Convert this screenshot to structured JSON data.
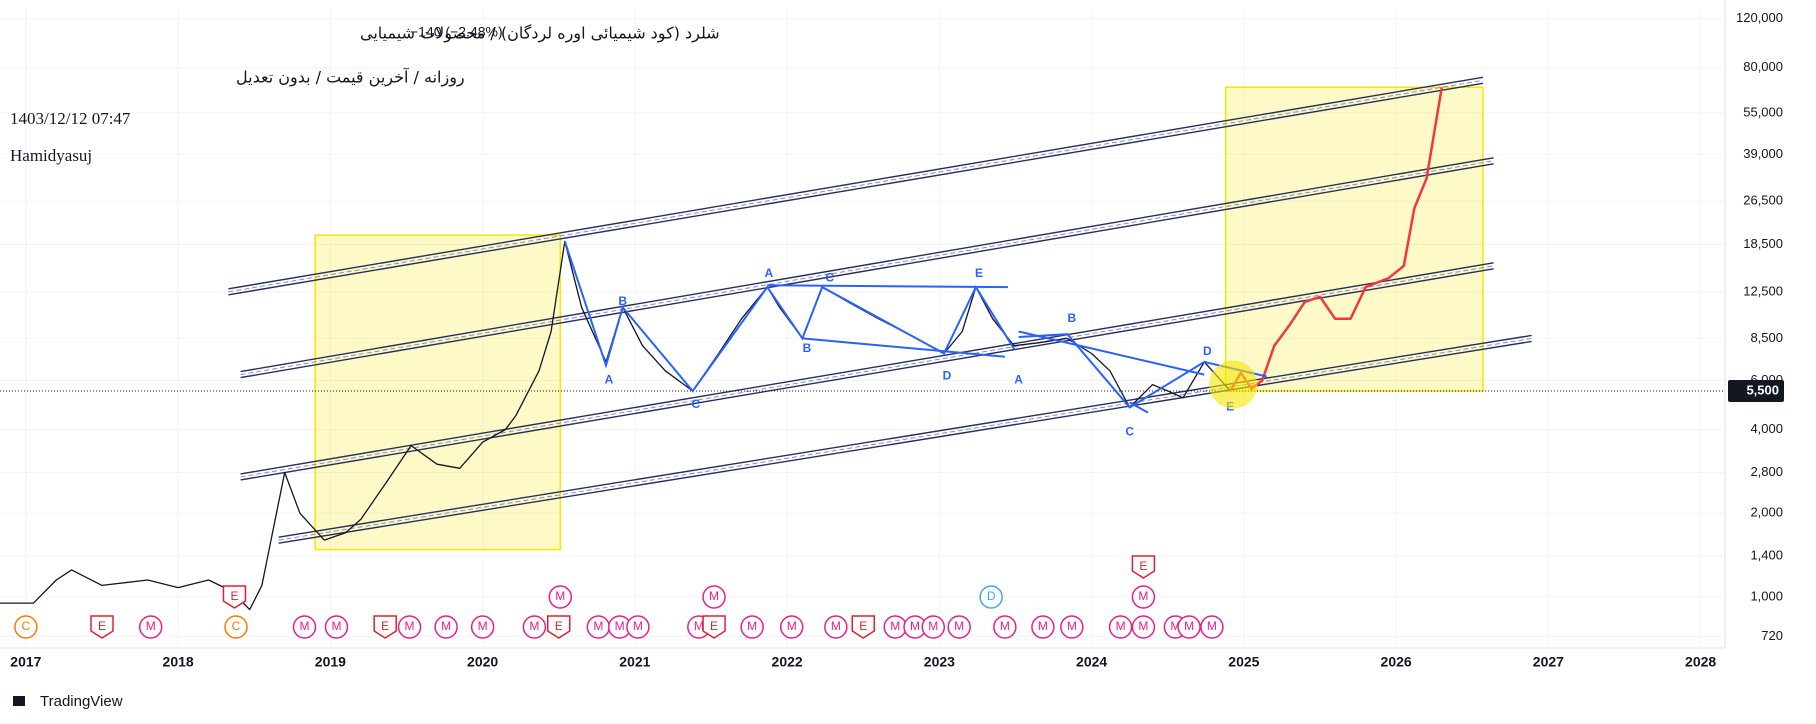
{
  "chart_data": {
    "type": "line",
    "title": "شلرد (کود شیمیائی اوره لردگان) / محصولات شیمیایی",
    "subtitle": "روزانه / آخرین قیمت / بدون تعدیل",
    "change": "−140 (−2.48%)",
    "timestamp": "1403/12/12 07:47",
    "author": "Hamidyasuj",
    "brand": "TradingView",
    "log_scale": true,
    "grid": true,
    "xlim": [
      2016.83,
      2028.16
    ],
    "xticks": [
      2017,
      2018,
      2019,
      2020,
      2021,
      2022,
      2023,
      2024,
      2025,
      2026,
      2027,
      2028
    ],
    "ylim": [
      655,
      130000
    ],
    "yticks": [
      {
        "value": 120000,
        "label": "120,000"
      },
      {
        "value": 80000,
        "label": "80,000"
      },
      {
        "value": 55000,
        "label": "55,000"
      },
      {
        "value": 39000,
        "label": "39,000"
      },
      {
        "value": 26500,
        "label": "26,500"
      },
      {
        "value": 18500,
        "label": "18,500"
      },
      {
        "value": 12500,
        "label": "12,500"
      },
      {
        "value": 8500,
        "label": "8,500"
      },
      {
        "value": 6000,
        "label": "6,000"
      },
      {
        "value": 4000,
        "label": "4,000"
      },
      {
        "value": 2800,
        "label": "2,800"
      },
      {
        "value": 2000,
        "label": "2,000"
      },
      {
        "value": 1400,
        "label": "1,400"
      },
      {
        "value": 1000,
        "label": "1,000"
      },
      720
    ],
    "last_price": {
      "value": 5500,
      "label": "5,500"
    },
    "series": [
      {
        "name": "Price",
        "color": "#131722",
        "x": [
          2016.83,
          2017.05,
          2017.2,
          2017.3,
          2017.5,
          2017.8,
          2018.0,
          2018.2,
          2018.35,
          2018.47,
          2018.55,
          2018.62,
          2018.7,
          2018.8,
          2018.96,
          2019.1,
          2019.2,
          2019.35,
          2019.53,
          2019.7,
          2019.85,
          2020.0,
          2020.15,
          2020.22,
          2020.37,
          2020.45,
          2020.54,
          2020.65,
          2020.81,
          2020.92,
          2021.05,
          2021.2,
          2021.38,
          2021.55,
          2021.7,
          2021.87,
          2021.95,
          2022.1,
          2022.23,
          2022.4,
          2022.6,
          2022.8,
          2023.03,
          2023.15,
          2023.24,
          2023.35,
          2023.49,
          2023.65,
          2023.84,
          2024.0,
          2024.12,
          2024.25,
          2024.4,
          2024.5,
          2024.6,
          2024.74,
          2024.85,
          2024.91
        ],
        "values": [
          950,
          950,
          1150,
          1250,
          1100,
          1150,
          1080,
          1150,
          1050,
          900,
          1100,
          1700,
          2800,
          2000,
          1600,
          1700,
          1900,
          2500,
          3500,
          3000,
          2900,
          3600,
          4000,
          4500,
          6500,
          9000,
          19000,
          11000,
          7000,
          11000,
          8000,
          6500,
          5500,
          7500,
          10000,
          13000,
          11000,
          8500,
          13000,
          11500,
          10000,
          8800,
          7500,
          9000,
          13000,
          10000,
          8000,
          8200,
          8500,
          7500,
          6500,
          4800,
          5800,
          5500,
          5200,
          7000,
          6000,
          5500
        ]
      },
      {
        "name": "Projection",
        "color": "#f23645",
        "x": [
          2024.91,
          2024.98,
          2025.05,
          2025.12,
          2025.2,
          2025.3,
          2025.4,
          2025.5,
          2025.6,
          2025.7,
          2025.8,
          2025.95,
          2026.05,
          2026.12,
          2026.2,
          2026.3
        ],
        "values": [
          5500,
          6400,
          5600,
          6000,
          8000,
          9500,
          11500,
          12000,
          10000,
          10000,
          13000,
          14000,
          15500,
          25000,
          32000,
          68000
        ]
      }
    ],
    "channel_color": "#2a2e5a",
    "channels": [
      {
        "x": [
          2018.33,
          2026.57
        ],
        "y": [
          12500,
          72000
        ]
      },
      {
        "x": [
          2018.41,
          2026.64
        ],
        "y": [
          6300,
          37000
        ]
      },
      {
        "x": [
          2018.41,
          2026.64
        ],
        "y": [
          2700,
          15500
        ]
      },
      {
        "x": [
          2018.66,
          2026.89
        ],
        "y": [
          1600,
          8500
        ]
      }
    ],
    "box_color": "#f7e600",
    "boxes": [
      {
        "x": [
          2018.9,
          2020.51
        ],
        "y": [
          1480,
          20000
        ]
      },
      {
        "x": [
          2024.88,
          2026.57
        ],
        "y": [
          5500,
          68000
        ]
      }
    ],
    "highlight": {
      "x": 2024.93,
      "y": 5800
    },
    "wave_color": "#2962ff",
    "wave_lines": [
      {
        "x": [
          2020.54,
          2020.81,
          2020.92,
          2021.38,
          2021.87,
          2022.1,
          2022.23,
          2023.03,
          2023.24,
          2023.49
        ],
        "y": [
          19000,
          6800,
          11000,
          5500,
          13000,
          8500,
          13000,
          7500,
          13000,
          7800
        ]
      },
      {
        "x": [
          2021.87,
          2023.45
        ],
        "y": [
          13200,
          13000
        ]
      },
      {
        "x": [
          2022.1,
          2023.43
        ],
        "y": [
          8500,
          7300
        ]
      },
      {
        "x": [
          2023.52,
          2023.84,
          2024.25,
          2024.74,
          2025.15
        ],
        "y": [
          8600,
          8800,
          4800,
          7000,
          6200
        ]
      },
      {
        "x": [
          2023.52,
          2024.74
        ],
        "y": [
          9000,
          6300
        ]
      },
      {
        "x": [
          2024.25,
          2024.37
        ],
        "y": [
          5000,
          4600
        ]
      }
    ],
    "wave_labels": [
      {
        "x": 2020.92,
        "y": 11500,
        "label": "B"
      },
      {
        "x": 2020.83,
        "y": 6000,
        "label": "A"
      },
      {
        "x": 2021.4,
        "y": 4900,
        "label": "C"
      },
      {
        "x": 2021.88,
        "y": 14500,
        "label": "A"
      },
      {
        "x": 2022.28,
        "y": 14000,
        "label": "C"
      },
      {
        "x": 2022.13,
        "y": 7800,
        "label": "B"
      },
      {
        "x": 2023.05,
        "y": 6200,
        "label": "D"
      },
      {
        "x": 2023.26,
        "y": 14500,
        "label": "E"
      },
      {
        "x": 2023.52,
        "y": 6000,
        "label": "A"
      },
      {
        "x": 2023.87,
        "y": 10000,
        "label": "B"
      },
      {
        "x": 2024.25,
        "y": 3900,
        "label": "C"
      },
      {
        "x": 2024.76,
        "y": 7600,
        "label": "D"
      },
      {
        "x": 2024.91,
        "y": 4800,
        "label": "E"
      }
    ],
    "events": [
      [
        {
          "x": 2017.0,
          "label": "C"
        },
        {
          "x": 2017.5,
          "label": "E"
        },
        {
          "x": 2017.82,
          "label": "M"
        },
        {
          "x": 2018.38,
          "label": "C"
        },
        {
          "x": 2018.83,
          "label": "M"
        },
        {
          "x": 2019.04,
          "label": "M"
        },
        {
          "x": 2019.36,
          "label": "E"
        },
        {
          "x": 2019.52,
          "label": "M"
        },
        {
          "x": 2019.76,
          "label": "M"
        },
        {
          "x": 2020.0,
          "label": "M"
        },
        {
          "x": 2020.34,
          "label": "M"
        },
        {
          "x": 2020.5,
          "label": "E"
        },
        {
          "x": 2020.76,
          "label": "M"
        },
        {
          "x": 2020.9,
          "label": "M"
        },
        {
          "x": 2021.02,
          "label": "M"
        },
        {
          "x": 2021.42,
          "label": "M"
        },
        {
          "x": 2021.52,
          "label": "E"
        },
        {
          "x": 2021.77,
          "label": "M"
        },
        {
          "x": 2022.03,
          "label": "M"
        },
        {
          "x": 2022.32,
          "label": "M"
        },
        {
          "x": 2022.5,
          "label": "E"
        },
        {
          "x": 2022.71,
          "label": "M"
        },
        {
          "x": 2022.84,
          "label": "M"
        },
        {
          "x": 2022.96,
          "label": "M"
        },
        {
          "x": 2023.13,
          "label": "M"
        },
        {
          "x": 2023.43,
          "label": "M"
        },
        {
          "x": 2023.68,
          "label": "M"
        },
        {
          "x": 2023.87,
          "label": "M"
        },
        {
          "x": 2024.19,
          "label": "M"
        },
        {
          "x": 2024.34,
          "label": "M"
        },
        {
          "x": 2024.55,
          "label": "M"
        },
        {
          "x": 2024.64,
          "label": "M"
        },
        {
          "x": 2024.79,
          "label": "M"
        }
      ],
      [
        {
          "x": 2018.37,
          "label": "E"
        },
        {
          "x": 2020.51,
          "label": "M"
        },
        {
          "x": 2021.52,
          "label": "M"
        },
        {
          "x": 2023.34,
          "label": "D"
        },
        {
          "x": 2024.34,
          "label": "M"
        }
      ],
      [
        {
          "x": 2024.34,
          "label": "E"
        }
      ]
    ],
    "event_colors": {
      "M": "#e91e8c",
      "E": "#e0202c",
      "C": "#f57c00",
      "D": "#42a5f5"
    }
  }
}
